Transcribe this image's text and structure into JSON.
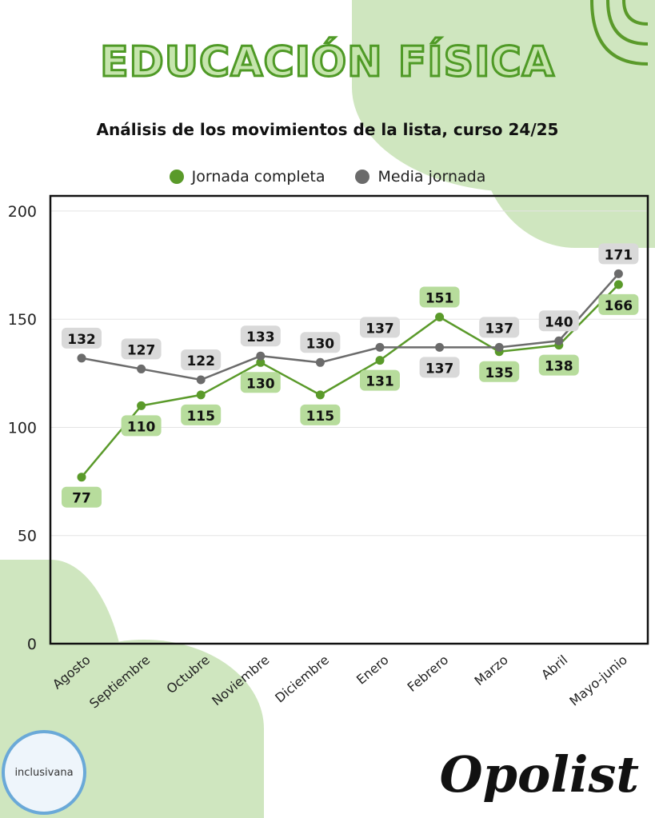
{
  "header": {
    "title": "EDUCACIÓN FÍSICA",
    "subtitle": "Análisis de los movimientos de la lista, curso 24/25"
  },
  "brand": {
    "logo_text": "Opolist",
    "badge_text": "inclusivana"
  },
  "colors": {
    "green": "#5a9a2a",
    "gray": "#6b6b6b",
    "green_label": "#b7dc9c",
    "gray_label": "#d9d9d9",
    "blob": "#cfe6bf"
  },
  "chart_data": {
    "type": "line",
    "title": "Análisis de los movimientos de la lista, curso 24/25",
    "xlabel": "",
    "ylabel": "",
    "categories": [
      "Agosto",
      "Septiembre",
      "Octubre",
      "Noviembre",
      "Diciembre",
      "Enero",
      "Febrero",
      "Marzo",
      "Abril",
      "Mayo-junio"
    ],
    "ylim": [
      0,
      207
    ],
    "yticks": [
      0,
      50,
      100,
      150,
      200
    ],
    "grid": true,
    "legend_position": "top-center",
    "series": [
      {
        "name": "Jornada completa",
        "color": "#5a9a2a",
        "values": [
          77,
          110,
          115,
          130,
          115,
          131,
          151,
          135,
          138,
          166
        ]
      },
      {
        "name": "Media jornada",
        "color": "#6b6b6b",
        "values": [
          132,
          127,
          122,
          133,
          130,
          137,
          137,
          137,
          140,
          171
        ]
      }
    ]
  }
}
